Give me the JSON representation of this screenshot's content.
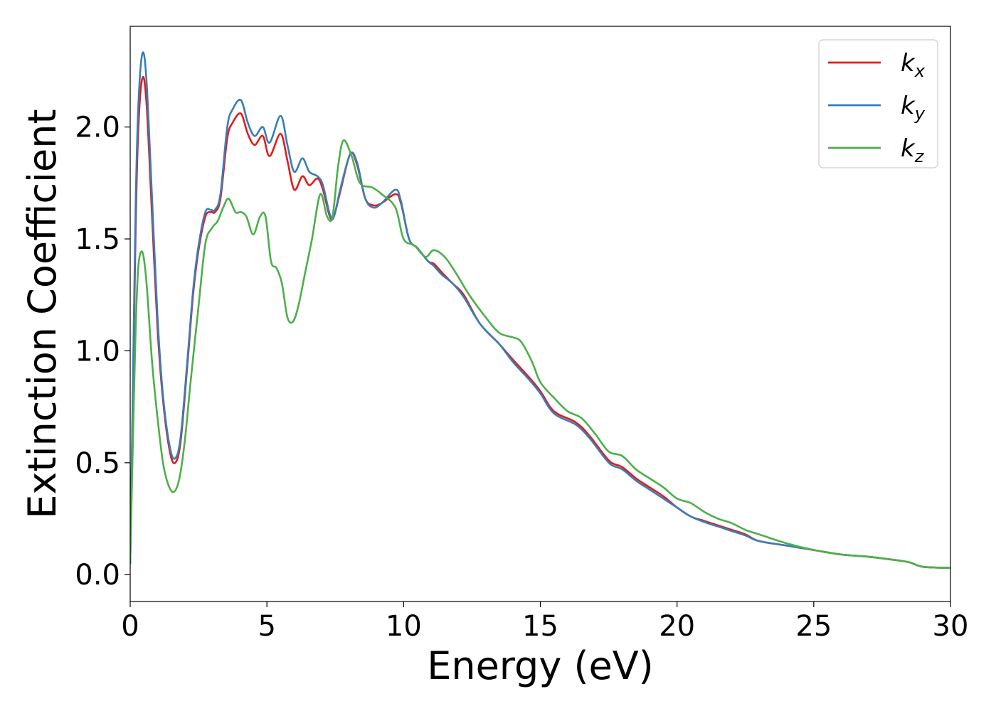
{
  "chart_data": {
    "type": "line",
    "title": "",
    "xlabel": "Energy (eV)",
    "ylabel": "Extinction Coefficient",
    "xlim": [
      0,
      30
    ],
    "ylim": [
      -0.12,
      2.45
    ],
    "xticks": [
      0,
      5,
      10,
      15,
      20,
      25,
      30
    ],
    "xtick_labels": [
      "0",
      "5",
      "10",
      "15",
      "20",
      "25",
      "30"
    ],
    "yticks": [
      0.0,
      0.5,
      1.0,
      1.5,
      2.0
    ],
    "ytick_labels": [
      "0.0",
      "0.5",
      "1.0",
      "1.5",
      "2.0"
    ],
    "grid": false,
    "legend_position": "top-right",
    "series": [
      {
        "name": "k",
        "subscript": "x",
        "color": "#e41a1c",
        "x": [
          0,
          0.1,
          0.2,
          0.3,
          0.45,
          0.6,
          0.8,
          1.0,
          1.2,
          1.45,
          1.65,
          1.85,
          2.1,
          2.3,
          2.5,
          2.75,
          2.95,
          3.1,
          3.3,
          3.55,
          3.75,
          4.05,
          4.3,
          4.55,
          4.85,
          5.1,
          5.5,
          5.75,
          6.0,
          6.3,
          6.55,
          6.85,
          7.05,
          7.3,
          7.45,
          7.7,
          8.05,
          8.3,
          8.6,
          8.9,
          9.2,
          9.7,
          9.9,
          10.2,
          10.5,
          10.9,
          11.1,
          11.4,
          11.8,
          12.2,
          12.8,
          13.5,
          14.0,
          14.6,
          15.0,
          15.5,
          16.3,
          16.8,
          17.3,
          17.6,
          18.0,
          18.5,
          19.0,
          19.5,
          20.0,
          20.5,
          21.0,
          21.5,
          22.0,
          22.5,
          23.0,
          24.0,
          25.0,
          26.0,
          27.0,
          28.0,
          28.5,
          29.0,
          30.0
        ],
        "values": [
          0.05,
          0.8,
          1.55,
          2.0,
          2.22,
          2.1,
          1.6,
          1.1,
          0.78,
          0.55,
          0.5,
          0.6,
          0.95,
          1.25,
          1.45,
          1.6,
          1.62,
          1.62,
          1.68,
          1.95,
          2.02,
          2.06,
          1.97,
          1.92,
          1.96,
          1.87,
          1.97,
          1.85,
          1.72,
          1.78,
          1.74,
          1.77,
          1.72,
          1.6,
          1.6,
          1.72,
          1.88,
          1.83,
          1.68,
          1.65,
          1.66,
          1.7,
          1.66,
          1.5,
          1.46,
          1.4,
          1.39,
          1.35,
          1.3,
          1.25,
          1.12,
          1.03,
          0.96,
          0.88,
          0.82,
          0.73,
          0.68,
          0.62,
          0.54,
          0.5,
          0.48,
          0.43,
          0.39,
          0.35,
          0.3,
          0.26,
          0.24,
          0.22,
          0.2,
          0.18,
          0.15,
          0.13,
          0.11,
          0.09,
          0.08,
          0.065,
          0.055,
          0.035,
          0.03
        ]
      },
      {
        "name": "k",
        "subscript": "y",
        "color": "#377eb8",
        "x": [
          0,
          0.1,
          0.2,
          0.3,
          0.45,
          0.6,
          0.8,
          1.0,
          1.2,
          1.45,
          1.65,
          1.85,
          2.1,
          2.3,
          2.5,
          2.75,
          2.95,
          3.1,
          3.3,
          3.55,
          3.75,
          4.05,
          4.3,
          4.55,
          4.85,
          5.1,
          5.5,
          5.75,
          6.0,
          6.3,
          6.55,
          6.85,
          7.05,
          7.3,
          7.45,
          7.7,
          8.05,
          8.3,
          8.6,
          8.9,
          9.2,
          9.7,
          9.9,
          10.2,
          10.5,
          10.9,
          11.1,
          11.4,
          11.8,
          12.2,
          12.8,
          13.5,
          14.0,
          14.6,
          15.0,
          15.5,
          16.3,
          16.8,
          17.3,
          17.6,
          18.0,
          18.5,
          19.0,
          19.5,
          20.0,
          20.5,
          21.0,
          21.5,
          22.0,
          22.5,
          23.0,
          24.0,
          25.0,
          26.0,
          27.0,
          28.0,
          28.5,
          29.0,
          30.0
        ],
        "values": [
          0.05,
          0.85,
          1.65,
          2.1,
          2.33,
          2.2,
          1.68,
          1.15,
          0.8,
          0.57,
          0.52,
          0.62,
          0.97,
          1.27,
          1.47,
          1.62,
          1.63,
          1.63,
          1.7,
          2.0,
          2.08,
          2.12,
          2.02,
          1.96,
          2.0,
          1.93,
          2.05,
          1.92,
          1.8,
          1.86,
          1.8,
          1.78,
          1.74,
          1.61,
          1.6,
          1.73,
          1.88,
          1.84,
          1.68,
          1.64,
          1.66,
          1.72,
          1.67,
          1.5,
          1.46,
          1.4,
          1.38,
          1.34,
          1.3,
          1.24,
          1.12,
          1.03,
          0.95,
          0.87,
          0.81,
          0.72,
          0.67,
          0.61,
          0.53,
          0.49,
          0.47,
          0.42,
          0.38,
          0.34,
          0.3,
          0.26,
          0.235,
          0.215,
          0.195,
          0.175,
          0.15,
          0.13,
          0.11,
          0.09,
          0.08,
          0.065,
          0.055,
          0.035,
          0.03
        ]
      },
      {
        "name": "k",
        "subscript": "z",
        "color": "#4daf4a",
        "x": [
          0,
          0.1,
          0.2,
          0.3,
          0.45,
          0.6,
          0.8,
          1.0,
          1.2,
          1.4,
          1.6,
          1.8,
          2.0,
          2.2,
          2.5,
          2.75,
          3.0,
          3.2,
          3.4,
          3.6,
          3.85,
          4.05,
          4.25,
          4.5,
          4.75,
          4.95,
          5.15,
          5.35,
          5.55,
          5.75,
          5.95,
          6.15,
          6.4,
          6.65,
          6.95,
          7.2,
          7.4,
          7.6,
          7.8,
          8.1,
          8.4,
          8.85,
          9.2,
          9.7,
          10.0,
          10.4,
          10.8,
          11.1,
          11.5,
          11.9,
          12.4,
          13.0,
          13.5,
          14.0,
          14.3,
          14.7,
          15.0,
          15.5,
          16.0,
          16.5,
          17.0,
          17.5,
          18.0,
          18.5,
          19.0,
          19.5,
          20.0,
          20.5,
          21.0,
          21.5,
          22.0,
          22.5,
          23.0,
          24.0,
          25.0,
          26.0,
          27.0,
          28.0,
          28.5,
          29.0,
          30.0
        ],
        "values": [
          0.05,
          0.6,
          1.1,
          1.38,
          1.44,
          1.3,
          0.95,
          0.7,
          0.5,
          0.4,
          0.37,
          0.43,
          0.6,
          0.85,
          1.2,
          1.48,
          1.55,
          1.58,
          1.64,
          1.68,
          1.62,
          1.62,
          1.6,
          1.52,
          1.6,
          1.6,
          1.4,
          1.37,
          1.3,
          1.15,
          1.13,
          1.2,
          1.35,
          1.5,
          1.7,
          1.6,
          1.6,
          1.82,
          1.94,
          1.87,
          1.75,
          1.73,
          1.7,
          1.64,
          1.5,
          1.47,
          1.42,
          1.45,
          1.42,
          1.35,
          1.25,
          1.15,
          1.08,
          1.06,
          1.04,
          0.95,
          0.86,
          0.79,
          0.73,
          0.7,
          0.63,
          0.55,
          0.53,
          0.47,
          0.43,
          0.39,
          0.34,
          0.32,
          0.28,
          0.25,
          0.23,
          0.2,
          0.18,
          0.14,
          0.11,
          0.09,
          0.08,
          0.065,
          0.055,
          0.035,
          0.03
        ]
      }
    ]
  }
}
